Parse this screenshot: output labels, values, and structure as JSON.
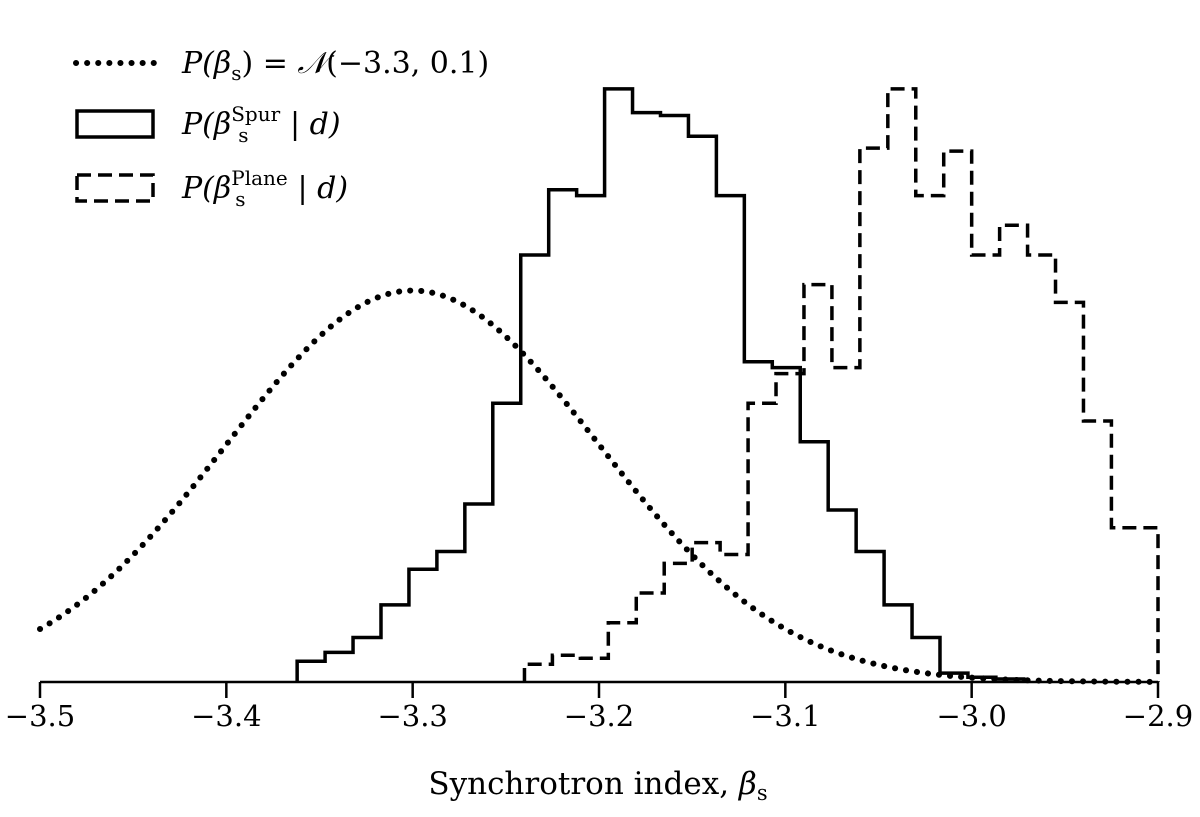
{
  "chart_data": {
    "type": "histogram",
    "xlabel": "Synchrotron index, β_s",
    "xlabel_main": "Synchrotron index,",
    "xlabel_symbol": "β",
    "xlabel_sub": "s",
    "xlim": [
      -3.5,
      -2.9
    ],
    "ylim": [
      0,
      1.02
    ],
    "x_ticks": [
      -3.5,
      -3.4,
      -3.3,
      -3.2,
      -3.1,
      -3.0,
      -2.9
    ],
    "x_tick_labels": [
      "−3.5",
      "−3.4",
      "−3.3",
      "−3.2",
      "−3.1",
      "−3.0",
      "−2.9"
    ],
    "y_ticks_visible": false,
    "grid": false,
    "legend_position": "top-left",
    "series": [
      {
        "name": "P(β_s) = N(−3.3, 0.1)",
        "kind": "prior-curve",
        "style": "dotted",
        "distribution": "gaussian",
        "mean": -3.3,
        "sigma": 0.1,
        "peak": 0.66,
        "legend": {
          "pre": "P(",
          "beta": "β",
          "sub": "s",
          "post": ") = ",
          "N": "𝒩",
          "args": "(−3.3, 0.1)"
        }
      },
      {
        "name": "P(β_s^Spur | d)",
        "kind": "histogram",
        "style": "solid",
        "bin_edges": [
          -3.362,
          -3.347,
          -3.332,
          -3.317,
          -3.302,
          -3.287,
          -3.272,
          -3.257,
          -3.242,
          -3.227,
          -3.212,
          -3.197,
          -3.182,
          -3.167,
          -3.152,
          -3.137,
          -3.122,
          -3.107,
          -3.092,
          -3.077,
          -3.062,
          -3.047,
          -3.032,
          -3.017,
          -3.002,
          -2.987,
          -2.972
        ],
        "values": [
          0.035,
          0.05,
          0.075,
          0.13,
          0.19,
          0.22,
          0.3,
          0.47,
          0.72,
          0.83,
          0.82,
          1.0,
          0.96,
          0.955,
          0.92,
          0.82,
          0.54,
          0.53,
          0.405,
          0.29,
          0.22,
          0.13,
          0.075,
          0.015,
          0.008,
          0.005
        ]
      },
      {
        "name": "P(β_s^Plane | d)",
        "kind": "histogram",
        "style": "dashed",
        "bin_edges": [
          -3.24,
          -3.225,
          -3.21,
          -3.195,
          -3.18,
          -3.165,
          -3.15,
          -3.135,
          -3.12,
          -3.105,
          -3.09,
          -3.075,
          -3.06,
          -3.045,
          -3.03,
          -3.015,
          -3.0,
          -2.985,
          -2.97,
          -2.955,
          -2.94,
          -2.925,
          -2.91,
          -2.9
        ],
        "values": [
          0.03,
          0.045,
          0.04,
          0.1,
          0.15,
          0.2,
          0.235,
          0.215,
          0.47,
          0.52,
          0.67,
          0.53,
          0.9,
          1.0,
          0.82,
          0.895,
          0.72,
          0.77,
          0.72,
          0.64,
          0.44,
          0.26,
          0.26
        ]
      }
    ],
    "legend_entries": [
      {
        "pre": "P(",
        "beta": "β",
        "sub": "s",
        "post": ") = ",
        "N": "𝒩",
        "args": "(−3.3, 0.1)"
      },
      {
        "pre": "P(",
        "beta": "β",
        "sub": "s",
        "sup": "Spur",
        "post": " | d)"
      },
      {
        "pre": "P(",
        "beta": "β",
        "sub": "s",
        "sup": "Plane",
        "post": " | d)"
      }
    ]
  }
}
